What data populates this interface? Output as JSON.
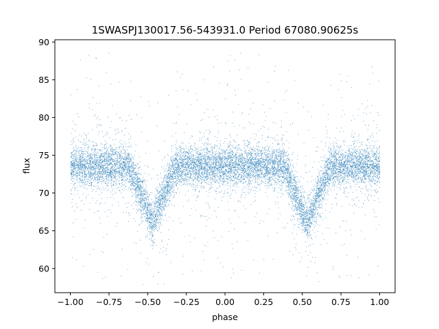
{
  "chart_data": {
    "type": "scatter",
    "title": "1SWASPJ130017.56-543931.0 Period 67080.90625s",
    "xlabel": "phase",
    "ylabel": "flux",
    "xlim": [
      -1.1,
      1.1
    ],
    "ylim": [
      56.8,
      90.3
    ],
    "xticks": [
      -1.0,
      -0.75,
      -0.5,
      -0.25,
      0.0,
      0.25,
      0.5,
      0.75,
      1.0
    ],
    "xtick_labels": [
      "−1.00",
      "−0.75",
      "−0.50",
      "−0.25",
      "0.00",
      "0.25",
      "0.50",
      "0.75",
      "1.00"
    ],
    "yticks": [
      60,
      65,
      70,
      75,
      80,
      85,
      90
    ],
    "ytick_labels": [
      "60",
      "65",
      "70",
      "75",
      "80",
      "85",
      "90"
    ],
    "grid": false,
    "marker_color": "#1f77b4",
    "light_curve": {
      "baseline_flux": 73.6,
      "baseline_scatter": 1.3,
      "eclipse_centers": [
        -0.47,
        0.53
      ],
      "eclipse_min_flux": 66.0,
      "eclipse_half_width": 0.15,
      "phase_range": [
        -1.0,
        1.0
      ],
      "n_points": 12000
    }
  }
}
